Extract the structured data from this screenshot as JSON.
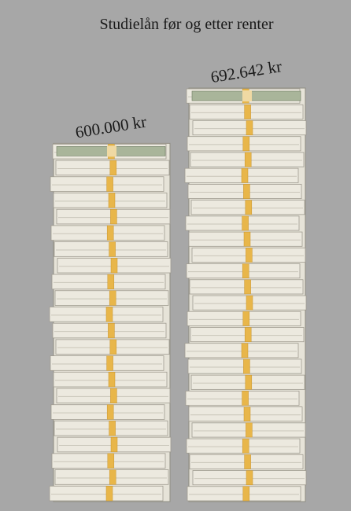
{
  "chart_data": {
    "type": "bar",
    "title": "Studielån før og etter renter",
    "categories": [
      null,
      null
    ],
    "values": [
      600000,
      692642
    ],
    "value_labels": [
      "600.000 kr",
      "692.642 kr"
    ],
    "color": "#e6e3d8"
  }
}
